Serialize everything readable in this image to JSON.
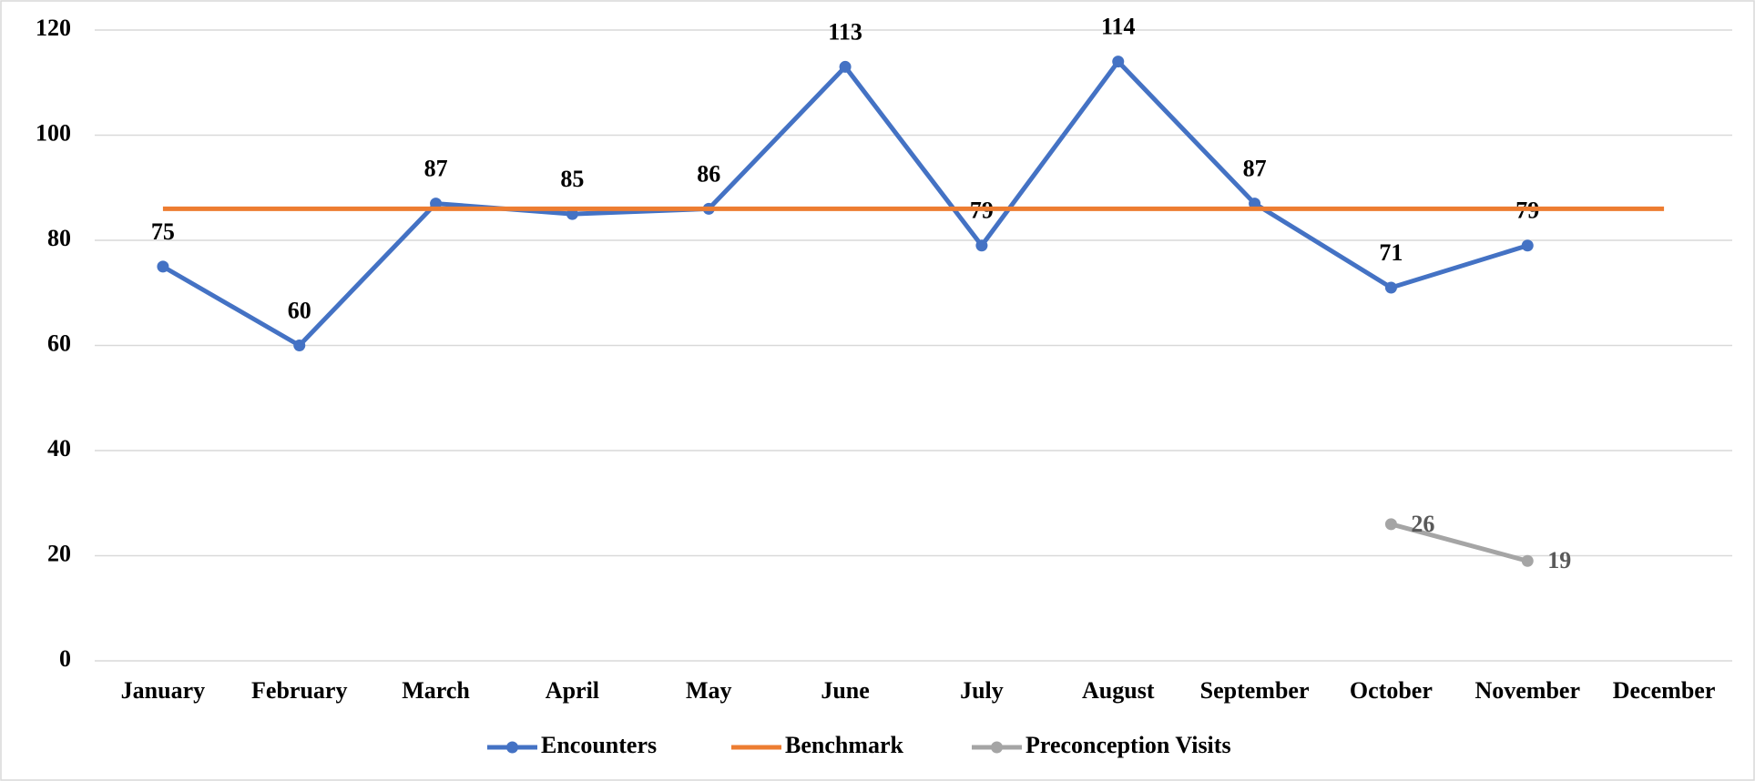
{
  "chart_data": {
    "type": "line",
    "categories": [
      "January",
      "February",
      "March",
      "April",
      "May",
      "June",
      "July",
      "August",
      "September",
      "October",
      "November",
      "December"
    ],
    "series": [
      {
        "name": "Encounters",
        "color": "#4472c4",
        "values": [
          75,
          60,
          87,
          85,
          86,
          113,
          79,
          114,
          87,
          71,
          79,
          null
        ],
        "labels": true,
        "markers": true,
        "label_side": "above",
        "label_color": "#000000"
      },
      {
        "name": "Benchmark",
        "color": "#ed7d31",
        "values": [
          86,
          86,
          86,
          86,
          86,
          86,
          86,
          86,
          86,
          86,
          86,
          86
        ],
        "labels": false,
        "markers": false
      },
      {
        "name": "Preconception Visits",
        "color": "#a5a5a5",
        "values": [
          null,
          null,
          null,
          null,
          null,
          null,
          null,
          null,
          null,
          26,
          19,
          null
        ],
        "labels": true,
        "markers": true,
        "label_side": "right",
        "label_color": "#595959"
      }
    ],
    "ylim": [
      0,
      120
    ],
    "yticks": [
      0,
      20,
      40,
      60,
      80,
      100,
      120
    ],
    "grid": true,
    "legend": "bottom"
  }
}
